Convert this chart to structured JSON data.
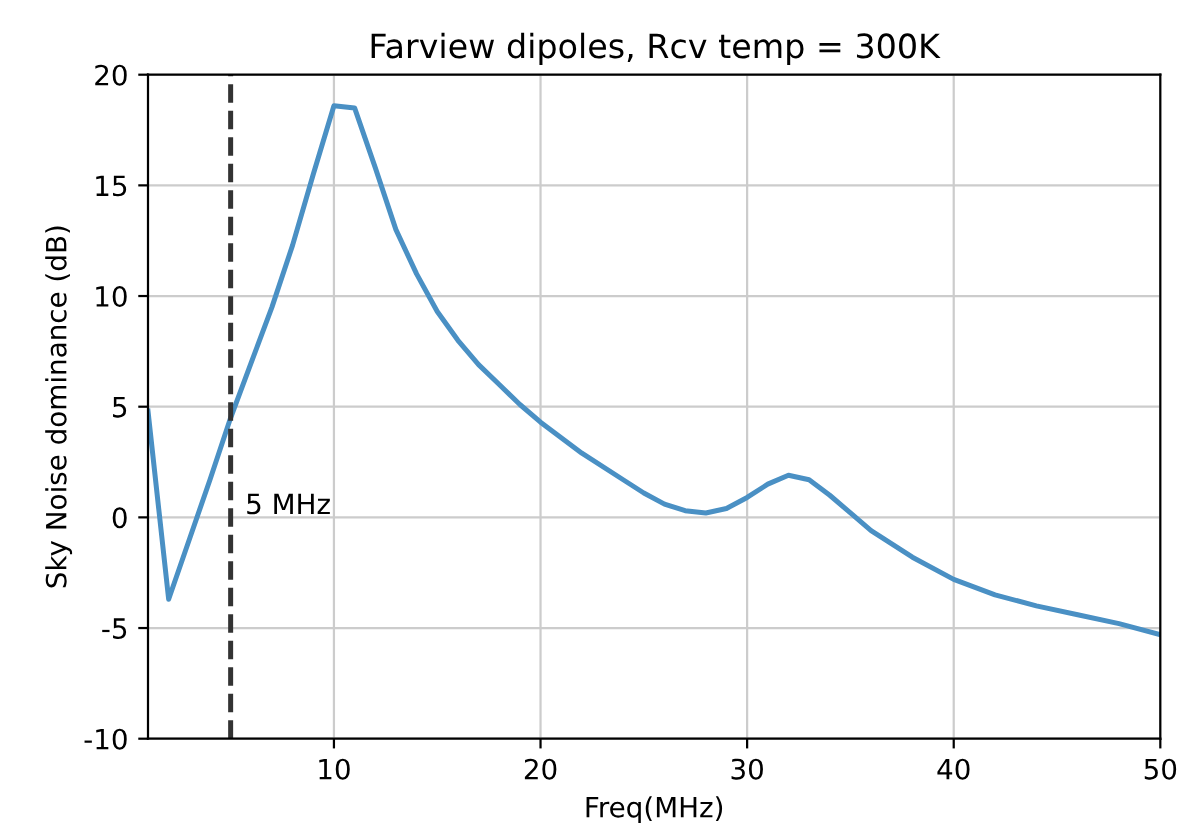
{
  "chart_data": {
    "type": "line",
    "title": "Farview dipoles, Rcv temp = 300K",
    "xlabel": "Freq(MHz)",
    "ylabel": "Sky Noise dominance (dB)",
    "x": [
      1,
      2,
      3,
      4,
      5,
      6,
      7,
      8,
      9,
      10,
      11,
      12,
      13,
      14,
      15,
      16,
      17,
      18,
      19,
      20,
      22,
      24,
      25,
      26,
      27,
      28,
      29,
      30,
      31,
      32,
      33,
      34,
      35,
      36,
      38,
      40,
      42,
      44,
      46,
      48,
      50
    ],
    "series": [
      {
        "color": "#4a90c4",
        "values": [
          4.8,
          -3.7,
          -1,
          1.7,
          4.5,
          7,
          9.5,
          12.3,
          15.5,
          18.6,
          18.5,
          15.8,
          13,
          11,
          9.3,
          8,
          6.9,
          6,
          5.1,
          4.3,
          2.9,
          1.7,
          1.1,
          0.6,
          0.3,
          0.2,
          0.4,
          0.9,
          1.5,
          1.9,
          1.7,
          1,
          0.2,
          -0.6,
          -1.8,
          -2.8,
          -3.5,
          -4,
          -4.4,
          -4.8,
          -5.3
        ]
      }
    ],
    "xlim": [
      1,
      50
    ],
    "ylim": [
      -10,
      20
    ],
    "xticks": [
      10,
      20,
      30,
      40,
      50
    ],
    "yticks": [
      -10,
      -5,
      0,
      5,
      10,
      15,
      20
    ],
    "grid": true,
    "ref_lines": [
      {
        "axis": "x",
        "value": 5,
        "label": "5 MHz",
        "color": "#333333",
        "line_style": "dashed"
      }
    ]
  }
}
